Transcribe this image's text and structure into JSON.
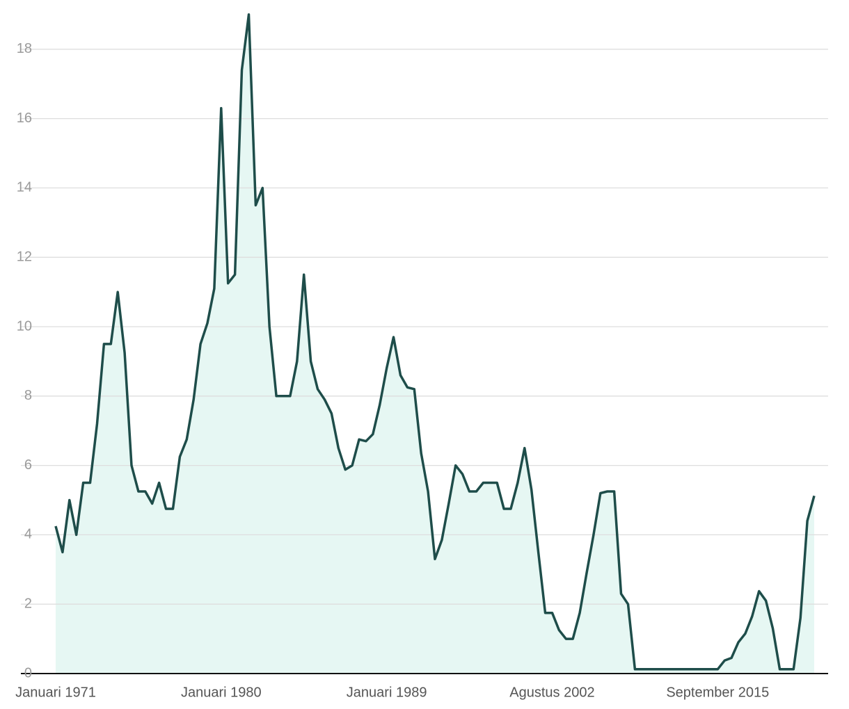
{
  "chart_data": {
    "type": "line",
    "categories": [
      "Januari 1971",
      null,
      null,
      null,
      null,
      null,
      null,
      null,
      null,
      null,
      null,
      null,
      null,
      null,
      null,
      null,
      null,
      null,
      null,
      null,
      null,
      null,
      null,
      null,
      "Januari 1980",
      null,
      null,
      null,
      null,
      null,
      null,
      null,
      null,
      null,
      null,
      null,
      null,
      null,
      null,
      null,
      null,
      null,
      null,
      null,
      null,
      null,
      null,
      null,
      "Januari 1989",
      null,
      null,
      null,
      null,
      null,
      null,
      null,
      null,
      null,
      null,
      null,
      null,
      null,
      null,
      null,
      null,
      null,
      null,
      null,
      null,
      null,
      null,
      null,
      "Agustus 2002",
      null,
      null,
      null,
      null,
      null,
      null,
      null,
      null,
      null,
      null,
      null,
      null,
      null,
      null,
      null,
      null,
      null,
      null,
      null,
      null,
      null,
      null,
      null,
      "September 2015",
      null,
      null,
      null,
      null,
      null,
      null,
      null,
      null,
      null,
      null,
      null,
      null,
      null,
      null
    ],
    "series": [
      {
        "name": null,
        "color": "#1e4d4a",
        "fill": "#e6f7f3",
        "values": [
          4.25,
          3.5,
          5,
          4,
          5.5,
          5.5,
          7.2,
          9.5,
          9.5,
          11,
          9.25,
          6,
          5.25,
          5.25,
          4.9,
          5.5,
          4.75,
          4.75,
          6.25,
          6.75,
          7.9,
          9.5,
          10.1,
          11.1,
          16.3,
          11.25,
          11.5,
          17.4,
          19,
          13.5,
          14,
          10,
          8,
          8,
          8,
          9,
          11.5,
          9,
          8.2,
          7.9,
          7.5,
          6.5,
          5.88,
          6,
          6.75,
          6.7,
          6.9,
          7.75,
          8.8,
          9.7,
          8.6,
          8.25,
          8.2,
          6.35,
          5.25,
          3.3,
          3.85,
          4.9,
          6,
          5.75,
          5.25,
          5.25,
          5.5,
          5.5,
          5.5,
          4.75,
          4.75,
          5.5,
          6.5,
          5.3,
          3.5,
          1.75,
          1.75,
          1.25,
          1,
          1,
          1.75,
          2.9,
          4,
          5.2,
          5.25,
          5.25,
          2.3,
          2,
          0.125,
          0.125,
          0.125,
          0.125,
          0.125,
          0.125,
          0.125,
          0.125,
          0.125,
          0.125,
          0.125,
          0.125,
          0.125,
          0.375,
          0.45,
          0.9,
          1.15,
          1.65,
          2.375,
          2.1,
          1.3,
          0.125,
          0.125,
          0.125,
          1.6,
          4.4,
          5.125
        ]
      }
    ],
    "ylim": [
      0,
      19.4
    ],
    "yticks": [
      0,
      2,
      4,
      6,
      8,
      10,
      12,
      14,
      16,
      18
    ],
    "grid": true
  }
}
